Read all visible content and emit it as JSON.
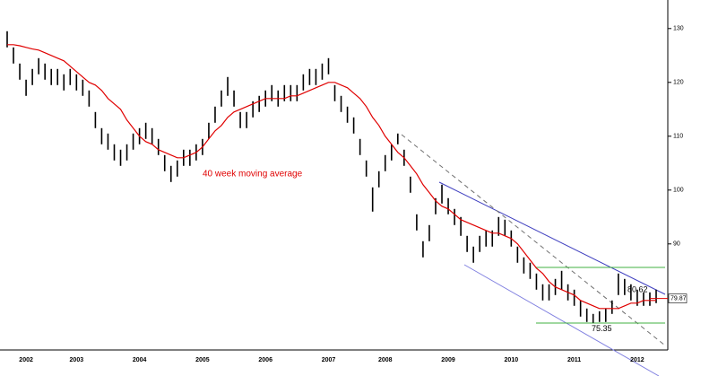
{
  "chart_data": {
    "type": "range",
    "categories": [
      null,
      null,
      null,
      "2002",
      null,
      null,
      null,
      null,
      null,
      null,
      null,
      "2003",
      null,
      null,
      null,
      null,
      null,
      null,
      null,
      null,
      null,
      "2004",
      null,
      null,
      null,
      null,
      null,
      null,
      null,
      null,
      null,
      "2005",
      null,
      null,
      null,
      null,
      null,
      null,
      null,
      null,
      null,
      "2006",
      null,
      null,
      null,
      null,
      null,
      null,
      null,
      null,
      null,
      "2007",
      null,
      null,
      null,
      null,
      null,
      null,
      null,
      null,
      "2008",
      null,
      null,
      null,
      null,
      null,
      null,
      null,
      null,
      null,
      "2009",
      null,
      null,
      null,
      null,
      null,
      null,
      null,
      null,
      null,
      "2010",
      null,
      null,
      null,
      null,
      null,
      null,
      null,
      null,
      null,
      "2011",
      null,
      null,
      null,
      null,
      null,
      null,
      null,
      null,
      null,
      "2012",
      null,
      null,
      null
    ],
    "high": [
      129.5,
      126.5,
      123.5,
      120.5,
      122.5,
      124.5,
      123.5,
      122.5,
      122.5,
      121.5,
      122.5,
      121.5,
      120.5,
      118.5,
      114.5,
      111.5,
      110.5,
      108.5,
      107.5,
      108.5,
      110.5,
      111.5,
      112.5,
      111.5,
      109.5,
      106.5,
      104.5,
      105.5,
      107.5,
      107.5,
      108.5,
      109.5,
      112.5,
      115.5,
      118.5,
      121,
      118.5,
      114.5,
      114.5,
      116.5,
      117.5,
      118.5,
      119.5,
      118.5,
      119.5,
      119.5,
      119.5,
      121.5,
      122.5,
      122.5,
      123.5,
      124.5,
      119.5,
      117.5,
      115.5,
      113.5,
      109.5,
      105.5,
      100.5,
      103.5,
      106.5,
      108.5,
      110.5,
      107.5,
      102.5,
      95.5,
      90.5,
      93.5,
      98.5,
      101,
      98.5,
      96.5,
      95,
      91.5,
      89.5,
      91.5,
      92.5,
      92.5,
      95,
      94.5,
      92.5,
      89.5,
      87.5,
      86.5,
      84.5,
      82.5,
      82.5,
      83.5,
      85,
      82.5,
      81.5,
      79.5,
      78,
      77,
      77.5,
      78,
      79.5,
      84.5,
      83.5,
      82.5,
      81.5,
      81,
      81,
      81.5
    ],
    "low": [
      126.5,
      123.5,
      120.5,
      117.5,
      119.5,
      121.5,
      120.5,
      119.5,
      119.5,
      118.5,
      119.5,
      118.5,
      117.5,
      115.5,
      111.5,
      108.5,
      107.5,
      105.5,
      104.5,
      105.5,
      107.5,
      108.5,
      109.5,
      108.5,
      106.5,
      103.5,
      101.5,
      102.5,
      104.5,
      104.5,
      105.5,
      106.5,
      109.5,
      112.5,
      115.5,
      117.5,
      115.5,
      111.5,
      111.5,
      113.5,
      114.5,
      115.5,
      116.5,
      115.5,
      116.5,
      116.5,
      116.5,
      118.5,
      119.5,
      119.5,
      120.5,
      121.5,
      116.5,
      114.5,
      112.5,
      110.5,
      106.5,
      102.5,
      96,
      100.5,
      103.5,
      105.5,
      108.5,
      104.5,
      99.5,
      92.5,
      87.5,
      90.5,
      95.5,
      97.5,
      95.5,
      93.5,
      91.5,
      88.5,
      86.5,
      88.5,
      89.5,
      89.5,
      91.5,
      91.5,
      89.5,
      86.5,
      84.5,
      83.5,
      81.5,
      79.5,
      79.5,
      80.5,
      81.5,
      79.5,
      78.5,
      76.5,
      75.5,
      75.35,
      75.5,
      75.5,
      77,
      80.5,
      80.5,
      79.5,
      78.5,
      78.5,
      78.5,
      79
    ],
    "color": "#000000",
    "moving_average": {
      "color": "#e00000",
      "values": [
        127,
        127,
        126.8,
        126.5,
        126.2,
        126,
        125.5,
        125,
        124.5,
        124,
        123,
        122,
        121,
        120,
        119.5,
        118.5,
        117,
        116,
        115,
        113,
        111.5,
        110,
        109,
        108.5,
        107.5,
        107,
        106.5,
        106,
        106,
        106.5,
        107,
        108,
        109.5,
        111,
        112,
        113.5,
        114.5,
        115,
        115.5,
        116,
        116.5,
        117,
        117,
        117,
        117,
        117.5,
        117.5,
        118,
        118.5,
        119,
        119.5,
        120,
        120,
        119.5,
        119,
        118,
        117,
        115.5,
        113.5,
        112,
        110,
        108.5,
        107,
        106,
        104.5,
        103,
        101,
        99.5,
        98,
        97,
        96.5,
        95.5,
        94.5,
        94,
        93.5,
        93,
        92.5,
        92,
        92,
        91.5,
        91,
        90,
        88.5,
        87,
        85.5,
        84.5,
        83,
        82,
        81.5,
        81,
        80.5,
        79.5,
        79,
        78.5,
        78,
        78,
        78,
        78,
        78.5,
        79,
        79,
        79.5,
        79.5,
        79.5
      ]
    },
    "ma_label": "40 week moving average",
    "level_high": 80.62,
    "level_low": 75.35,
    "last_price": 79.87,
    "ylim": [
      70.3,
      135.3
    ],
    "yticks": [
      90,
      100,
      110,
      120,
      130
    ]
  }
}
